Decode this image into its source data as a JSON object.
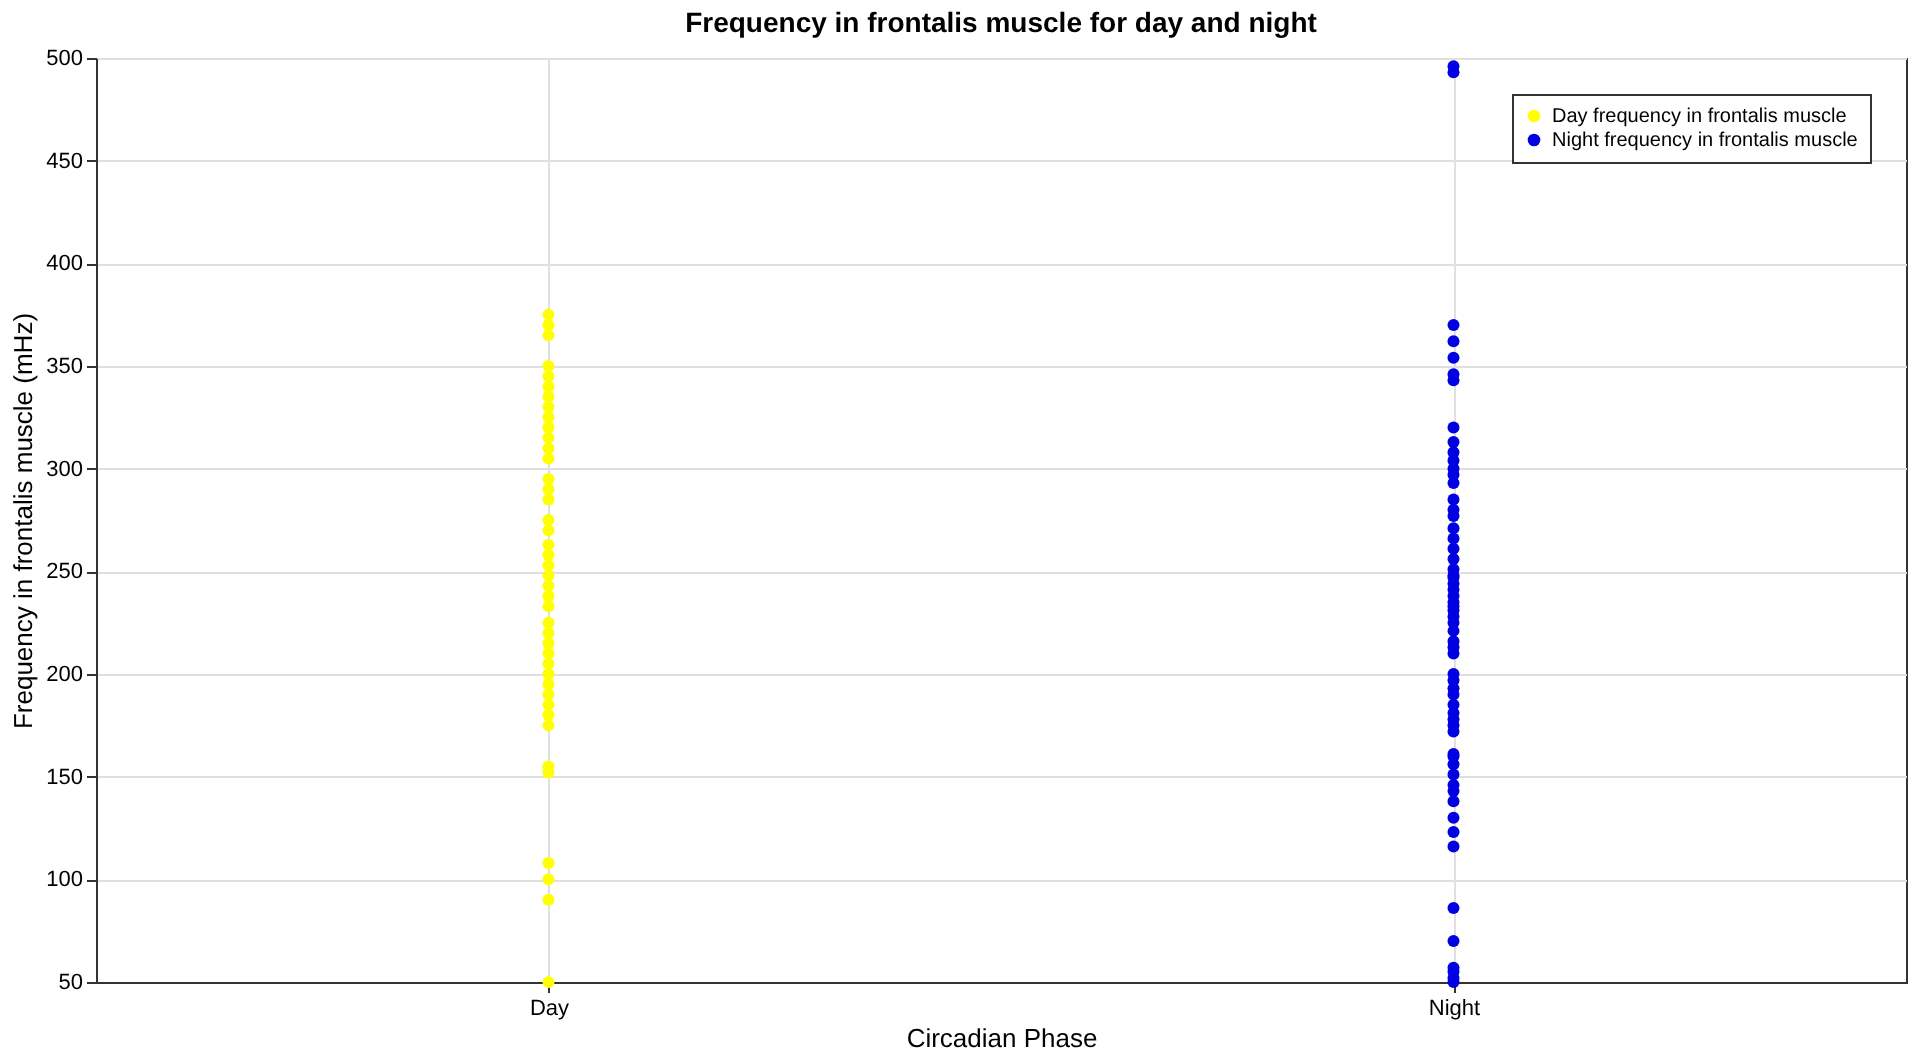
{
  "chart_data": {
    "type": "scatter",
    "title": "Frequency in frontalis muscle for day and night",
    "xlabel": "Circadian Phase",
    "ylabel": "Frequency in frontalis muscle (mHz)",
    "categories": [
      "Day",
      "Night"
    ],
    "ylim": [
      50,
      500
    ],
    "yticks": [
      50,
      100,
      150,
      200,
      250,
      300,
      350,
      400,
      450,
      500
    ],
    "grid": true,
    "legend": "top right",
    "marker": "circle",
    "series": [
      {
        "name": "Day frequency in frontalis muscle",
        "color": "#ffff00",
        "x": [
          "Day",
          "Day",
          "Day",
          "Day",
          "Day",
          "Day",
          "Day",
          "Day",
          "Day",
          "Day",
          "Day",
          "Day",
          "Day",
          "Day",
          "Day",
          "Day",
          "Day",
          "Day",
          "Day",
          "Day",
          "Day",
          "Day",
          "Day",
          "Day",
          "Day",
          "Day",
          "Day",
          "Day",
          "Day",
          "Day",
          "Day",
          "Day",
          "Day",
          "Day",
          "Day",
          "Day",
          "Day",
          "Day",
          "Day",
          "Day",
          "Day",
          "Day"
        ],
        "values": [
          375,
          370,
          365,
          350,
          345,
          340,
          335,
          330,
          325,
          320,
          315,
          310,
          305,
          295,
          290,
          285,
          275,
          270,
          263,
          258,
          253,
          248,
          243,
          238,
          233,
          225,
          220,
          215,
          210,
          205,
          200,
          195,
          190,
          185,
          180,
          175,
          155,
          152,
          108,
          100,
          90,
          50
        ]
      },
      {
        "name": "Night frequency in frontalis muscle",
        "color": "#0000e0",
        "x": [
          "Night",
          "Night",
          "Night",
          "Night",
          "Night",
          "Night",
          "Night",
          "Night",
          "Night",
          "Night",
          "Night",
          "Night",
          "Night",
          "Night",
          "Night",
          "Night",
          "Night",
          "Night",
          "Night",
          "Night",
          "Night",
          "Night",
          "Night",
          "Night",
          "Night",
          "Night",
          "Night",
          "Night",
          "Night",
          "Night",
          "Night",
          "Night",
          "Night",
          "Night",
          "Night",
          "Night",
          "Night",
          "Night",
          "Night",
          "Night",
          "Night",
          "Night",
          "Night",
          "Night",
          "Night",
          "Night",
          "Night",
          "Night",
          "Night",
          "Night",
          "Night",
          "Night",
          "Night",
          "Night",
          "Night",
          "Night",
          "Night",
          "Night",
          "Night",
          "Night",
          "Night"
        ],
        "values": [
          496,
          493,
          370,
          362,
          354,
          346,
          343,
          320,
          313,
          308,
          304,
          297,
          293,
          285,
          280,
          277,
          271,
          266,
          261,
          256,
          251,
          248,
          244,
          241,
          238,
          235,
          231,
          228,
          225,
          221,
          216,
          213,
          210,
          200,
          197,
          193,
          190,
          185,
          181,
          178,
          175,
          172,
          161,
          156,
          151,
          146,
          143,
          138,
          130,
          123,
          116,
          86,
          70,
          57,
          55,
          52,
          50,
          160,
          233,
          247,
          300
        ]
      }
    ]
  }
}
